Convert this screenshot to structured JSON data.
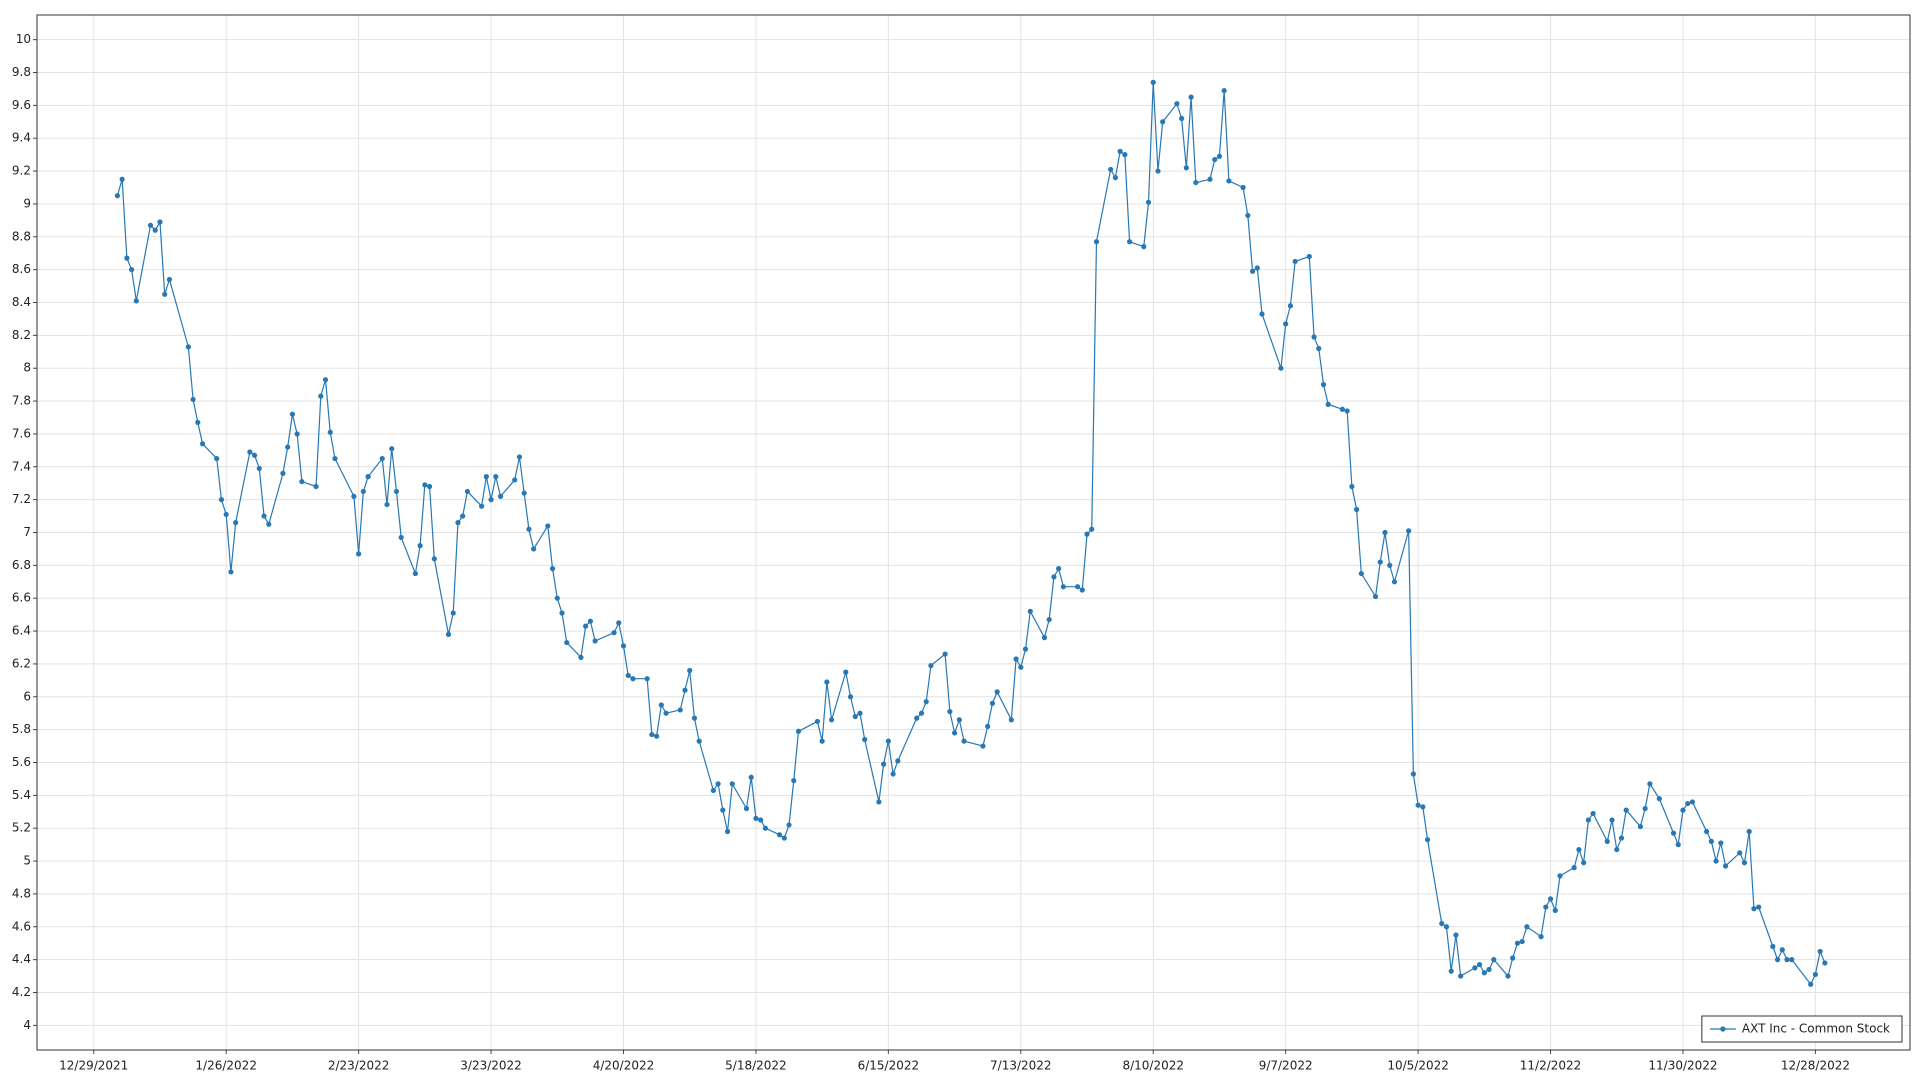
{
  "chart_data": {
    "type": "line",
    "x": [
      "1/3/2022",
      "1/4/2022",
      "1/5/2022",
      "1/6/2022",
      "1/7/2022",
      "1/10/2022",
      "1/11/2022",
      "1/12/2022",
      "1/13/2022",
      "1/14/2022",
      "1/18/2022",
      "1/19/2022",
      "1/20/2022",
      "1/21/2022",
      "1/24/2022",
      "1/25/2022",
      "1/26/2022",
      "1/27/2022",
      "1/28/2022",
      "1/31/2022",
      "2/1/2022",
      "2/2/2022",
      "2/3/2022",
      "2/4/2022",
      "2/7/2022",
      "2/8/2022",
      "2/9/2022",
      "2/10/2022",
      "2/11/2022",
      "2/14/2022",
      "2/15/2022",
      "2/16/2022",
      "2/17/2022",
      "2/18/2022",
      "2/22/2022",
      "2/23/2022",
      "2/24/2022",
      "2/25/2022",
      "2/28/2022",
      "3/1/2022",
      "3/2/2022",
      "3/3/2022",
      "3/4/2022",
      "3/7/2022",
      "3/8/2022",
      "3/9/2022",
      "3/10/2022",
      "3/11/2022",
      "3/14/2022",
      "3/15/2022",
      "3/16/2022",
      "3/17/2022",
      "3/18/2022",
      "3/21/2022",
      "3/22/2022",
      "3/23/2022",
      "3/24/2022",
      "3/25/2022",
      "3/28/2022",
      "3/29/2022",
      "3/30/2022",
      "3/31/2022",
      "4/1/2022",
      "4/4/2022",
      "4/5/2022",
      "4/6/2022",
      "4/7/2022",
      "4/8/2022",
      "4/11/2022",
      "4/12/2022",
      "4/13/2022",
      "4/14/2022",
      "4/18/2022",
      "4/19/2022",
      "4/20/2022",
      "4/21/2022",
      "4/22/2022",
      "4/25/2022",
      "4/26/2022",
      "4/27/2022",
      "4/28/2022",
      "4/29/2022",
      "5/2/2022",
      "5/3/2022",
      "5/4/2022",
      "5/5/2022",
      "5/6/2022",
      "5/9/2022",
      "5/10/2022",
      "5/11/2022",
      "5/12/2022",
      "5/13/2022",
      "5/16/2022",
      "5/17/2022",
      "5/18/2022",
      "5/19/2022",
      "5/20/2022",
      "5/23/2022",
      "5/24/2022",
      "5/25/2022",
      "5/26/2022",
      "5/27/2022",
      "5/31/2022",
      "6/1/2022",
      "6/2/2022",
      "6/3/2022",
      "6/6/2022",
      "6/7/2022",
      "6/8/2022",
      "6/9/2022",
      "6/10/2022",
      "6/13/2022",
      "6/14/2022",
      "6/15/2022",
      "6/16/2022",
      "6/17/2022",
      "6/21/2022",
      "6/22/2022",
      "6/23/2022",
      "6/24/2022",
      "6/27/2022",
      "6/28/2022",
      "6/29/2022",
      "6/30/2022",
      "7/1/2022",
      "7/5/2022",
      "7/6/2022",
      "7/7/2022",
      "7/8/2022",
      "7/11/2022",
      "7/12/2022",
      "7/13/2022",
      "7/14/2022",
      "7/15/2022",
      "7/18/2022",
      "7/19/2022",
      "7/20/2022",
      "7/21/2022",
      "7/22/2022",
      "7/25/2022",
      "7/26/2022",
      "7/27/2022",
      "7/28/2022",
      "7/29/2022",
      "8/1/2022",
      "8/2/2022",
      "8/3/2022",
      "8/4/2022",
      "8/5/2022",
      "8/8/2022",
      "8/9/2022",
      "8/10/2022",
      "8/11/2022",
      "8/12/2022",
      "8/15/2022",
      "8/16/2022",
      "8/17/2022",
      "8/18/2022",
      "8/19/2022",
      "8/22/2022",
      "8/23/2022",
      "8/24/2022",
      "8/25/2022",
      "8/26/2022",
      "8/29/2022",
      "8/30/2022",
      "8/31/2022",
      "9/1/2022",
      "9/2/2022",
      "9/6/2022",
      "9/7/2022",
      "9/8/2022",
      "9/9/2022",
      "9/12/2022",
      "9/13/2022",
      "9/14/2022",
      "9/15/2022",
      "9/16/2022",
      "9/19/2022",
      "9/20/2022",
      "9/21/2022",
      "9/22/2022",
      "9/23/2022",
      "9/26/2022",
      "9/27/2022",
      "9/28/2022",
      "9/29/2022",
      "9/30/2022",
      "10/3/2022",
      "10/4/2022",
      "10/5/2022",
      "10/6/2022",
      "10/7/2022",
      "10/10/2022",
      "10/11/2022",
      "10/12/2022",
      "10/13/2022",
      "10/14/2022",
      "10/17/2022",
      "10/18/2022",
      "10/19/2022",
      "10/20/2022",
      "10/21/2022",
      "10/24/2022",
      "10/25/2022",
      "10/26/2022",
      "10/27/2022",
      "10/28/2022",
      "10/31/2022",
      "11/1/2022",
      "11/2/2022",
      "11/3/2022",
      "11/4/2022",
      "11/7/2022",
      "11/8/2022",
      "11/9/2022",
      "11/10/2022",
      "11/11/2022",
      "11/14/2022",
      "11/15/2022",
      "11/16/2022",
      "11/17/2022",
      "11/18/2022",
      "11/21/2022",
      "11/22/2022",
      "11/23/2022",
      "11/25/2022",
      "11/28/2022",
      "11/29/2022",
      "11/30/2022",
      "12/1/2022",
      "12/2/2022",
      "12/5/2022",
      "12/6/2022",
      "12/7/2022",
      "12/8/2022",
      "12/9/2022",
      "12/12/2022",
      "12/13/2022",
      "12/14/2022",
      "12/15/2022",
      "12/16/2022",
      "12/19/2022",
      "12/20/2022",
      "12/21/2022",
      "12/22/2022",
      "12/23/2022",
      "12/27/2022",
      "12/28/2022",
      "12/29/2022",
      "12/30/2022"
    ],
    "series": [
      {
        "name": "AXT Inc - Common Stock",
        "color": "#2878b5",
        "values": [
          9.05,
          9.15,
          8.67,
          8.6,
          8.41,
          8.87,
          8.84,
          8.89,
          8.45,
          8.54,
          8.13,
          7.81,
          7.67,
          7.54,
          7.45,
          7.2,
          7.11,
          6.76,
          7.06,
          7.49,
          7.47,
          7.39,
          7.1,
          7.05,
          7.36,
          7.52,
          7.72,
          7.6,
          7.31,
          7.28,
          7.83,
          7.93,
          7.61,
          7.45,
          7.22,
          6.87,
          7.25,
          7.34,
          7.45,
          7.17,
          7.51,
          7.25,
          6.97,
          6.75,
          6.92,
          7.29,
          7.28,
          6.84,
          6.38,
          6.51,
          7.06,
          7.1,
          7.25,
          7.16,
          7.34,
          7.2,
          7.34,
          7.22,
          7.32,
          7.46,
          7.24,
          7.02,
          6.9,
          7.04,
          6.78,
          6.6,
          6.51,
          6.33,
          6.24,
          6.43,
          6.46,
          6.34,
          6.39,
          6.45,
          6.31,
          6.13,
          6.11,
          6.11,
          5.77,
          5.76,
          5.95,
          5.9,
          5.92,
          6.04,
          6.16,
          5.87,
          5.73,
          5.43,
          5.47,
          5.31,
          5.18,
          5.47,
          5.32,
          5.51,
          5.26,
          5.25,
          5.2,
          5.16,
          5.14,
          5.22,
          5.49,
          5.79,
          5.85,
          5.73,
          6.09,
          5.86,
          6.15,
          6.0,
          5.88,
          5.9,
          5.74,
          5.36,
          5.59,
          5.73,
          5.53,
          5.61,
          5.87,
          5.9,
          5.97,
          6.19,
          6.26,
          5.91,
          5.78,
          5.86,
          5.73,
          5.7,
          5.82,
          5.96,
          6.03,
          5.86,
          6.23,
          6.18,
          6.29,
          6.52,
          6.36,
          6.47,
          6.73,
          6.78,
          6.67,
          6.67,
          6.65,
          6.99,
          7.02,
          8.77,
          9.21,
          9.16,
          9.32,
          9.3,
          8.77,
          8.74,
          9.01,
          9.74,
          9.2,
          9.5,
          9.61,
          9.52,
          9.22,
          9.65,
          9.13,
          9.15,
          9.27,
          9.29,
          9.69,
          9.14,
          9.1,
          8.93,
          8.59,
          8.61,
          8.33,
          8.0,
          8.27,
          8.38,
          8.65,
          8.68,
          8.19,
          8.12,
          7.9,
          7.78,
          7.75,
          7.74,
          7.28,
          7.14,
          6.75,
          6.61,
          6.82,
          7.0,
          6.8,
          6.7,
          7.01,
          5.53,
          5.34,
          5.33,
          5.13,
          4.62,
          4.6,
          4.33,
          4.55,
          4.3,
          4.35,
          4.37,
          4.32,
          4.34,
          4.4,
          4.3,
          4.41,
          4.5,
          4.51,
          4.6,
          4.54,
          4.72,
          4.77,
          4.7,
          4.91,
          4.96,
          5.07,
          4.99,
          5.25,
          5.29,
          5.12,
          5.25,
          5.07,
          5.14,
          5.31,
          5.21,
          5.32,
          5.47,
          5.38,
          5.17,
          5.1,
          5.31,
          5.35,
          5.36,
          5.18,
          5.12,
          5.0,
          5.11,
          4.97,
          5.05,
          4.99,
          5.18,
          4.71,
          4.72,
          4.48,
          4.4,
          4.46,
          4.4,
          4.4,
          4.25,
          4.31,
          4.45,
          4.38
        ]
      }
    ],
    "xlim": [
      "12/17/2021",
      "1/17/2023"
    ],
    "xticks": [
      "12/29/2021",
      "1/26/2022",
      "2/23/2022",
      "3/23/2022",
      "4/20/2022",
      "5/18/2022",
      "6/15/2022",
      "7/13/2022",
      "8/10/2022",
      "9/7/2022",
      "10/5/2022",
      "11/2/2022",
      "11/30/2022",
      "12/28/2022"
    ],
    "ylim": [
      3.85,
      10.15
    ],
    "yticks": [
      4,
      4.2,
      4.4,
      4.6,
      4.8,
      5,
      5.2,
      5.4,
      5.6,
      5.8,
      6,
      6.2,
      6.4,
      6.6,
      6.8,
      7,
      7.2,
      7.4,
      7.6,
      7.8,
      8,
      8.2,
      8.4,
      8.6,
      8.8,
      9,
      9.2,
      9.4,
      9.6,
      9.8,
      10
    ],
    "grid": true,
    "legend": "lower right"
  }
}
